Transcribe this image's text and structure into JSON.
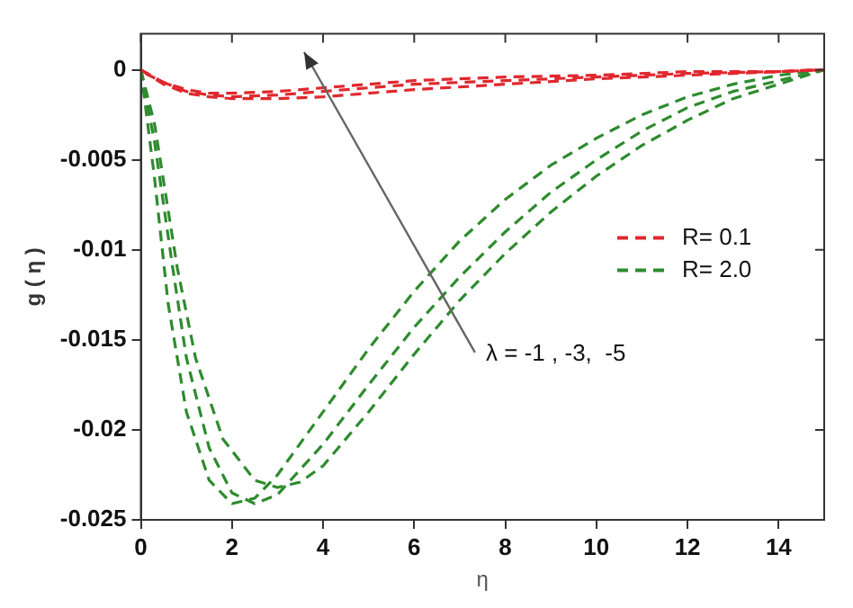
{
  "chart_data": {
    "type": "line",
    "xlabel": "η",
    "ylabel": "g ( η )",
    "xlim": [
      0,
      15
    ],
    "ylim": [
      -0.025,
      0.002
    ],
    "xticks": [
      0,
      2,
      4,
      6,
      8,
      10,
      12,
      14
    ],
    "yticks": [
      -0.025,
      -0.02,
      -0.015,
      -0.01,
      -0.005,
      0
    ],
    "grid": false,
    "legend": "right",
    "marker": "none",
    "line_style": "dashed",
    "annotations": [
      "λ = -1 , -3,  -5"
    ],
    "series": [
      {
        "name": "R= 0.1",
        "color": "#e0282e",
        "x": [
          0,
          0.5,
          1,
          1.5,
          2,
          3,
          4,
          5,
          6,
          8,
          10,
          12,
          14,
          15
        ],
        "values": [
          0,
          -0.0008,
          -0.0013,
          -0.0015,
          -0.0016,
          -0.0016,
          -0.0015,
          -0.0013,
          -0.0011,
          -0.0008,
          -0.0005,
          -0.0003,
          -0.0001,
          0
        ]
      },
      {
        "color": "#e0282e",
        "x": [
          0.1,
          0.5,
          1,
          1.5,
          2,
          3,
          4,
          5,
          6,
          8,
          10,
          12,
          14,
          15
        ],
        "values": [
          -0.0002,
          -0.0007,
          -0.0012,
          -0.0014,
          -0.0015,
          -0.0014,
          -0.0012,
          -0.001,
          -0.0008,
          -0.0006,
          -0.0004,
          -0.0002,
          -0.0001,
          0
        ]
      },
      {
        "color": "#e0282e",
        "x": [
          0,
          0.5,
          1,
          1.5,
          2,
          3,
          4,
          5,
          6,
          8,
          10,
          12,
          14,
          14.8
        ],
        "values": [
          0,
          -0.0007,
          -0.0011,
          -0.0013,
          -0.0013,
          -0.0012,
          -0.001,
          -0.0008,
          -0.0006,
          -0.0004,
          -0.0003,
          -0.0001,
          -0.0001,
          0
        ]
      },
      {
        "name": "R= 2.0",
        "color": "#2e8b2e",
        "x": [
          0,
          0.3,
          0.6,
          1,
          1.5,
          2,
          2.5,
          3,
          4,
          5,
          6,
          7,
          8,
          9,
          10,
          11,
          12,
          13,
          14,
          15
        ],
        "values": [
          0,
          -0.006,
          -0.013,
          -0.019,
          -0.0228,
          -0.0241,
          -0.0238,
          -0.0225,
          -0.019,
          -0.0155,
          -0.0123,
          -0.0095,
          -0.0072,
          -0.0053,
          -0.0038,
          -0.0025,
          -0.0015,
          -0.0008,
          -0.0003,
          0
        ]
      },
      {
        "color": "#2e8b2e",
        "x": [
          0,
          0.3,
          0.7,
          1,
          1.5,
          2,
          2.5,
          3,
          4,
          5,
          6,
          7,
          8,
          9,
          10,
          11,
          12,
          13,
          14,
          15
        ],
        "values": [
          0,
          -0.004,
          -0.011,
          -0.016,
          -0.021,
          -0.0235,
          -0.0241,
          -0.0236,
          -0.0208,
          -0.0175,
          -0.0143,
          -0.0115,
          -0.009,
          -0.0068,
          -0.005,
          -0.0034,
          -0.0021,
          -0.0012,
          -0.0006,
          0
        ]
      },
      {
        "color": "#2e8b2e",
        "x": [
          0,
          0.3,
          0.8,
          1.2,
          1.8,
          2.5,
          3,
          3.5,
          4,
          5,
          6,
          7,
          8,
          9,
          10,
          11,
          12,
          13,
          14,
          15
        ],
        "values": [
          0,
          -0.003,
          -0.011,
          -0.016,
          -0.0205,
          -0.0228,
          -0.0232,
          -0.0229,
          -0.022,
          -0.019,
          -0.0158,
          -0.0128,
          -0.0102,
          -0.0079,
          -0.0059,
          -0.0042,
          -0.0028,
          -0.0016,
          -0.0008,
          0
        ]
      }
    ]
  }
}
